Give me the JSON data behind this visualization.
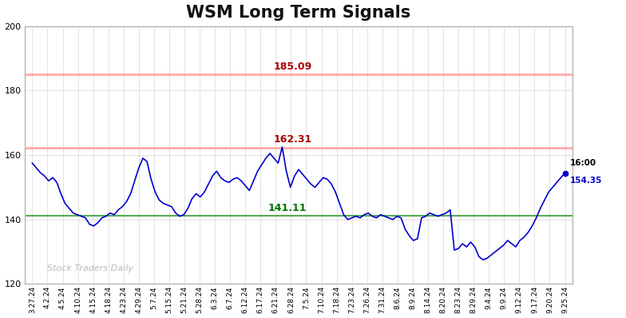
{
  "title": "WSM Long Term Signals",
  "title_fontsize": 15,
  "title_fontweight": "bold",
  "background_color": "#ffffff",
  "plot_bg_color": "#ffffff",
  "line_color": "#0000cc",
  "line_width": 1.2,
  "hline_red_upper": 185.09,
  "hline_red_lower": 162.31,
  "hline_green": 141.11,
  "hline_red_color": "#ffaaaa",
  "hline_green_color": "#55aa55",
  "ylim": [
    120,
    200
  ],
  "yticks": [
    120,
    140,
    160,
    180,
    200
  ],
  "annotation_185": {
    "text": "185.09",
    "color": "#aa0000"
  },
  "annotation_162": {
    "text": "162.31",
    "color": "#aa0000"
  },
  "annotation_141": {
    "text": "141.11",
    "color": "#007700"
  },
  "annotation_last_time": "16:00",
  "annotation_last_value": "154.35",
  "annotation_last_color": "#0000cc",
  "watermark": "Stock Traders Daily",
  "x_labels": [
    "3.27.24",
    "4.2.24",
    "4.5.24",
    "4.10.24",
    "4.15.24",
    "4.18.24",
    "4.23.24",
    "4.29.24",
    "5.7.24",
    "5.15.24",
    "5.21.24",
    "5.28.24",
    "6.3.24",
    "6.7.24",
    "6.12.24",
    "6.17.24",
    "6.21.24",
    "6.28.24",
    "7.5.24",
    "7.10.24",
    "7.18.24",
    "7.23.24",
    "7.26.24",
    "7.31.24",
    "8.6.24",
    "8.9.24",
    "8.14.24",
    "8.20.24",
    "8.23.24",
    "8.29.24",
    "9.4.24",
    "9.9.24",
    "9.12.24",
    "9.17.24",
    "9.20.24",
    "9.25.24"
  ],
  "y_values": [
    157.5,
    156.0,
    154.5,
    153.5,
    152.0,
    153.0,
    151.5,
    148.0,
    145.0,
    143.5,
    142.0,
    141.5,
    141.0,
    140.5,
    138.5,
    138.0,
    139.0,
    140.5,
    141.0,
    142.0,
    141.5,
    143.0,
    144.0,
    145.5,
    148.0,
    152.0,
    156.0,
    159.0,
    158.0,
    152.5,
    148.5,
    146.0,
    145.0,
    144.5,
    144.0,
    142.0,
    141.0,
    141.5,
    143.5,
    146.5,
    148.0,
    147.0,
    148.5,
    151.0,
    153.5,
    155.0,
    153.0,
    152.0,
    151.5,
    152.5,
    153.0,
    152.0,
    150.5,
    149.0,
    152.0,
    155.0,
    157.0,
    159.0,
    160.5,
    159.0,
    157.5,
    162.5,
    155.0,
    150.0,
    153.5,
    155.5,
    154.0,
    152.5,
    151.0,
    150.0,
    151.5,
    153.0,
    152.5,
    151.0,
    148.5,
    145.0,
    141.5,
    140.0,
    140.5,
    141.0,
    140.5,
    141.5,
    142.0,
    141.0,
    140.5,
    141.5,
    141.0,
    140.5,
    140.0,
    141.0,
    140.5,
    137.0,
    135.0,
    133.5,
    134.0,
    140.5,
    141.0,
    142.0,
    141.5,
    141.0,
    141.5,
    142.0,
    143.0,
    130.5,
    131.0,
    132.5,
    131.5,
    133.0,
    131.5,
    128.5,
    127.5,
    128.0,
    129.0,
    130.0,
    131.0,
    132.0,
    133.5,
    132.5,
    131.5,
    133.5,
    134.5,
    136.0,
    138.0,
    140.5,
    143.5,
    146.0,
    148.5,
    150.0,
    151.5,
    153.0,
    154.35
  ]
}
